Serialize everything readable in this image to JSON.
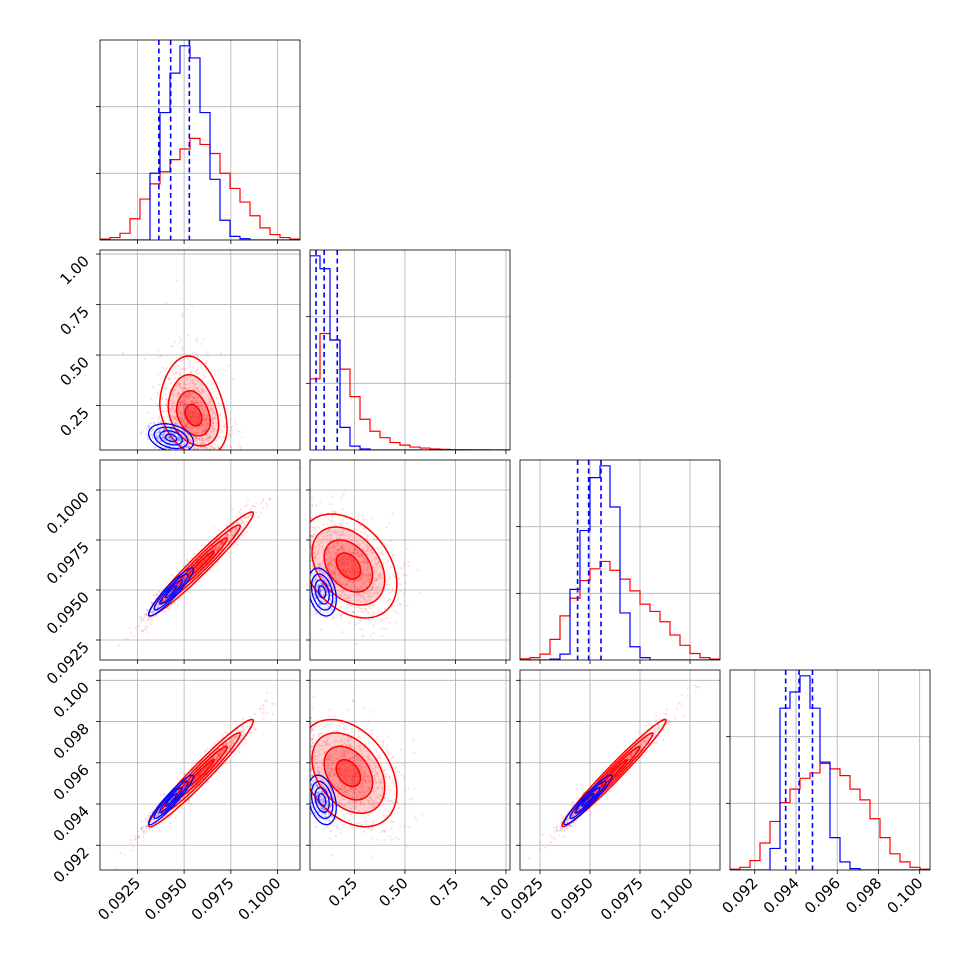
{
  "chart_data": {
    "type": "corner",
    "colors": {
      "red": "#ff0000",
      "blue": "#0000ff"
    },
    "params": [
      {
        "range": [
          0.0905,
          0.1012
        ],
        "ticks": [
          0.0925,
          0.095,
          0.0975,
          0.1
        ],
        "tick_labels": [
          "0.0925",
          "0.0950",
          "0.0975",
          "0.1000"
        ]
      },
      {
        "range": [
          0.03,
          1.02
        ],
        "ticks": [
          0.25,
          0.5,
          0.75,
          1.0
        ],
        "tick_labels": [
          "0.25",
          "0.50",
          "0.75",
          "1.00"
        ]
      },
      {
        "range": [
          0.0915,
          0.1015
        ],
        "ticks": [
          0.0925,
          0.095,
          0.0975,
          0.1
        ],
        "tick_labels": [
          "0.0925",
          "0.0950",
          "0.0975",
          "0.1000"
        ]
      },
      {
        "range": [
          0.0908,
          0.1005
        ],
        "ticks": [
          0.092,
          0.094,
          0.096,
          0.098,
          0.1
        ],
        "tick_labels": [
          "0.092",
          "0.094",
          "0.096",
          "0.098",
          "0.100"
        ]
      }
    ],
    "histograms": [
      {
        "param": 0,
        "red": [
          0.3,
          0.8,
          2.2,
          7.0,
          13.5,
          18.5,
          22.5,
          26.5,
          30.0,
          33.5,
          31.5,
          28.5,
          22.0,
          17.0,
          12.5,
          8.0,
          4.0,
          1.8,
          0.8,
          0.3
        ],
        "blue": [
          0,
          0,
          0,
          0,
          0,
          22.0,
          42.0,
          55.0,
          64.0,
          60.0,
          42.0,
          20.0,
          6.5,
          1.2,
          0.4,
          0,
          0,
          0,
          0,
          0
        ],
        "quantiles": [
          0.09365,
          0.09428,
          0.09528
        ]
      },
      {
        "param": 1,
        "red": [
          22.0,
          36.0,
          34.0,
          25.0,
          16.5,
          9.5,
          5.8,
          3.8,
          2.3,
          1.5,
          0.9,
          0.6,
          0.3,
          0.2,
          0.1,
          0.1,
          0.05,
          0.05,
          0.02,
          0.02
        ],
        "blue": [
          60.0,
          56.0,
          34.0,
          7.0,
          1.2,
          0.3,
          0,
          0,
          0,
          0,
          0,
          0,
          0,
          0,
          0,
          0,
          0,
          0,
          0,
          0
        ],
        "quantiles": [
          0.06,
          0.1,
          0.165
        ]
      },
      {
        "param": 2,
        "red": [
          0.4,
          0.8,
          2.0,
          7.0,
          15.0,
          21.0,
          27.0,
          31.0,
          33.5,
          30.5,
          27.5,
          23.5,
          19.0,
          16.5,
          13.0,
          8.5,
          5.0,
          2.2,
          0.8,
          0.3
        ],
        "blue": [
          0,
          0,
          0,
          0.3,
          2.0,
          24.0,
          44.0,
          62.0,
          66.0,
          52.0,
          16.0,
          4.5,
          0.8,
          0,
          0,
          0,
          0,
          0,
          0,
          0
        ],
        "quantiles": [
          0.09438,
          0.09493,
          0.09555
        ]
      },
      {
        "param": 3,
        "red": [
          0.3,
          1.0,
          3.5,
          10.0,
          18.0,
          25.0,
          30.0,
          34.0,
          36.0,
          39.5,
          37.5,
          35.0,
          30.0,
          26.0,
          19.0,
          12.0,
          6.0,
          3.0,
          1.0,
          0.3
        ],
        "blue": [
          0,
          0,
          0,
          0,
          8.0,
          60.0,
          66.0,
          72.0,
          60.0,
          40.0,
          12.0,
          3.0,
          0.5,
          0,
          0,
          0,
          0,
          0,
          0,
          0
        ],
        "quantiles": [
          0.0935,
          0.09415,
          0.0948
        ]
      }
    ],
    "scatter_pairs": [
      {
        "x_param": 0,
        "y_param": 1,
        "red": {
          "mean": [
            0.0955,
            0.2
          ],
          "sd": [
            0.0009,
            0.1
          ],
          "rho": -0.3,
          "skew_y": 0.25
        },
        "blue": {
          "mean": [
            0.0943,
            0.09
          ],
          "sd": [
            0.0006,
            0.035
          ],
          "rho": -0.3,
          "skew_y": 0
        }
      },
      {
        "x_param": 0,
        "y_param": 2,
        "red": {
          "mean": [
            0.0959,
            0.0963
          ],
          "sd": [
            0.0014,
            0.0013
          ],
          "rho": 0.97,
          "skew_y": 0
        },
        "blue": {
          "mean": [
            0.0943,
            0.0949
          ],
          "sd": [
            0.0006,
            0.0006
          ],
          "rho": 0.93,
          "skew_y": 0
        }
      },
      {
        "x_param": 1,
        "y_param": 2,
        "red": {
          "mean": [
            0.22,
            0.0962
          ],
          "sd": [
            0.12,
            0.0013
          ],
          "rho": -0.35,
          "skew_y": 0
        },
        "blue": {
          "mean": [
            0.09,
            0.0949
          ],
          "sd": [
            0.035,
            0.0006
          ],
          "rho": -0.3,
          "skew_y": 0
        }
      },
      {
        "x_param": 0,
        "y_param": 3,
        "red": {
          "mean": [
            0.0959,
            0.0955
          ],
          "sd": [
            0.0014,
            0.0013
          ],
          "rho": 0.97,
          "skew_y": 0
        },
        "blue": {
          "mean": [
            0.0943,
            0.0942
          ],
          "sd": [
            0.0006,
            0.0006
          ],
          "rho": 0.94,
          "skew_y": 0
        }
      },
      {
        "x_param": 1,
        "y_param": 3,
        "red": {
          "mean": [
            0.22,
            0.0955
          ],
          "sd": [
            0.12,
            0.0013
          ],
          "rho": -0.35,
          "skew_y": 0
        },
        "blue": {
          "mean": [
            0.09,
            0.0942
          ],
          "sd": [
            0.035,
            0.0006
          ],
          "rho": -0.3,
          "skew_y": 0
        }
      },
      {
        "x_param": 2,
        "y_param": 3,
        "red": {
          "mean": [
            0.0962,
            0.0955
          ],
          "sd": [
            0.0013,
            0.0013
          ],
          "rho": 0.98,
          "skew_y": 0
        },
        "blue": {
          "mean": [
            0.0949,
            0.0942
          ],
          "sd": [
            0.0006,
            0.0006
          ],
          "rho": 0.95,
          "skew_y": 0
        }
      }
    ],
    "contour_levels_sigma": [
      0.5,
      1.0,
      1.5,
      2.0
    ],
    "grid": true,
    "title": "",
    "xlabel": "",
    "ylabel": ""
  }
}
